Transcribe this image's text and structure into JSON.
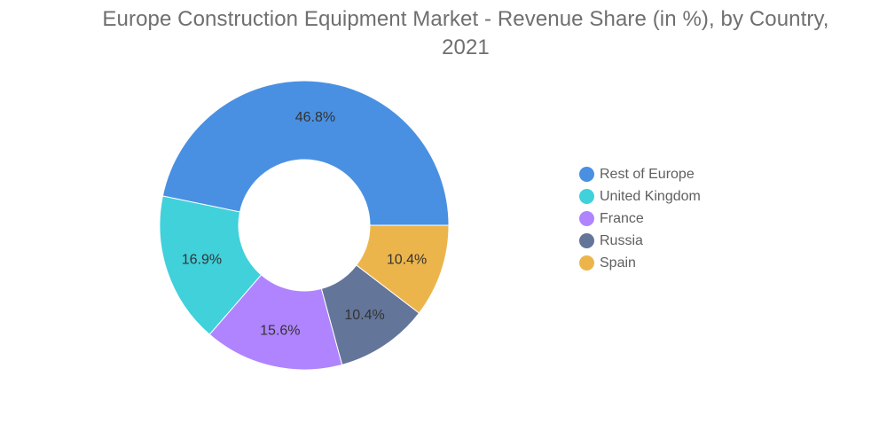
{
  "chart_data": {
    "type": "pie",
    "style": "donut",
    "title": "Europe Construction Equipment Market - Revenue Share (in %), by Country, 2021",
    "unit": "%",
    "legend_position": "right",
    "categories": [
      "Rest of Europe",
      "United Kingdom",
      "France",
      "Russia",
      "Spain"
    ],
    "values": [
      46.8,
      16.9,
      15.6,
      10.4,
      10.4
    ],
    "labels": [
      "46.8%",
      "16.9%",
      "15.6%",
      "10.4%",
      "10.4%"
    ],
    "colors": [
      "#4A90E2",
      "#40D1DB",
      "#B084FF",
      "#637599",
      "#ECB54C"
    ]
  }
}
